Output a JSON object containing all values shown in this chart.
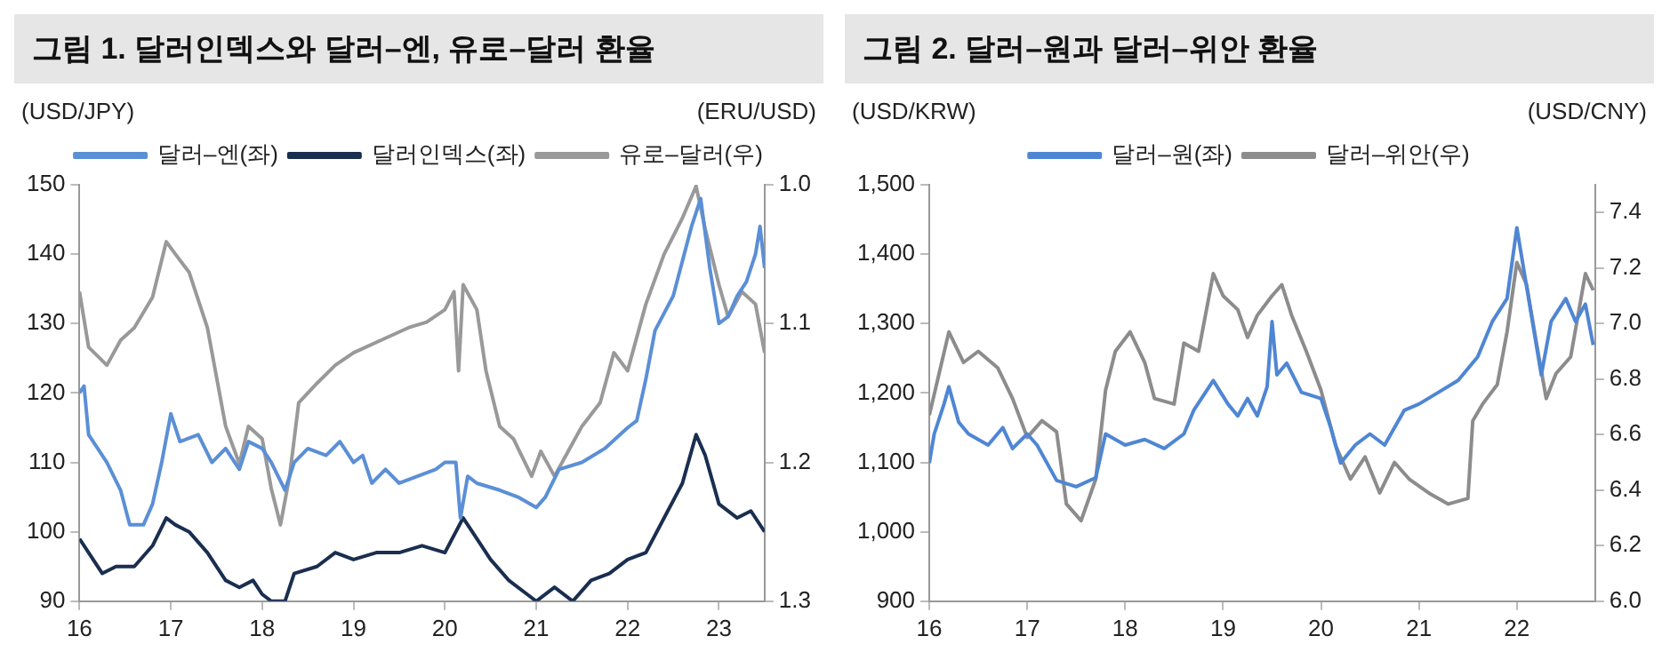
{
  "chart_data": [
    {
      "type": "line",
      "title": "그림 1.  달러인덱스와 달러–엔, 유로–달러 환율",
      "ylabel": "(USD/JPY)",
      "y2label": "(ERU/USD)",
      "xlim": [
        16,
        23.5
      ],
      "xticks": [
        16,
        17,
        18,
        19,
        20,
        21,
        22,
        23
      ],
      "ylim": [
        90,
        150
      ],
      "yticks": [
        90,
        100,
        110,
        120,
        130,
        140,
        150
      ],
      "y2lim": [
        1.3,
        1.0
      ],
      "y2ticks": [
        {
          "value": 1.0,
          "label": "1.0"
        },
        1.1,
        1.2,
        1.3
      ],
      "grid": false,
      "legend": "top",
      "marker": "none",
      "line_style": "solid",
      "series": [
        {
          "name": "달러–엔(좌)",
          "color": "#5b8fd6",
          "x": [
            16.0,
            16.05,
            16.1,
            16.3,
            16.45,
            16.55,
            16.7,
            16.8,
            16.9,
            17.0,
            17.1,
            17.3,
            17.45,
            17.6,
            17.75,
            17.85,
            18.0,
            18.1,
            18.25,
            18.35,
            18.5,
            18.7,
            18.85,
            19.0,
            19.1,
            19.2,
            19.35,
            19.5,
            19.7,
            19.9,
            20.0,
            20.12,
            20.17,
            20.25,
            20.35,
            20.6,
            20.8,
            21.0,
            21.1,
            21.25,
            21.5,
            21.75,
            22.0,
            22.1,
            22.2,
            22.3,
            22.5,
            22.7,
            22.8,
            22.9,
            23.0,
            23.1,
            23.2,
            23.3,
            23.4,
            23.45,
            23.5
          ],
          "values": [
            120,
            121,
            114,
            110,
            106,
            101,
            101,
            104,
            110,
            117,
            113,
            114,
            110,
            112,
            109,
            113,
            112,
            110,
            106,
            110,
            112,
            111,
            113,
            110,
            111,
            107,
            109,
            107,
            108,
            109,
            110,
            110,
            102,
            108,
            107,
            106,
            105,
            103.5,
            105,
            109,
            110,
            112,
            115,
            116,
            122,
            129,
            134,
            144,
            148,
            138,
            130,
            131,
            134,
            136,
            140,
            144,
            138
          ]
        },
        {
          "name": "달러인덱스(좌)",
          "color": "#1a2e50",
          "x": [
            16.0,
            16.1,
            16.25,
            16.4,
            16.6,
            16.8,
            16.95,
            17.05,
            17.2,
            17.4,
            17.6,
            17.75,
            17.9,
            18.0,
            18.1,
            18.25,
            18.35,
            18.6,
            18.8,
            19.0,
            19.25,
            19.5,
            19.75,
            20.0,
            20.2,
            20.3,
            20.5,
            20.7,
            20.9,
            21.0,
            21.2,
            21.4,
            21.6,
            21.8,
            22.0,
            22.2,
            22.4,
            22.6,
            22.75,
            22.85,
            23.0,
            23.2,
            23.35,
            23.5
          ],
          "values": [
            99,
            97,
            94,
            95,
            95,
            98,
            102,
            101,
            100,
            97,
            93,
            92,
            93,
            91,
            90,
            90,
            94,
            95,
            97,
            96,
            97,
            97,
            98,
            97,
            102,
            100,
            96,
            93,
            91,
            90,
            92,
            90,
            93,
            94,
            96,
            97,
            102,
            107,
            114,
            111,
            104,
            102,
            103,
            100
          ]
        },
        {
          "name": "유로–달러(우)",
          "color": "#999999",
          "axis": "y2",
          "x": [
            16.0,
            16.1,
            16.3,
            16.45,
            16.6,
            16.8,
            16.95,
            17.05,
            17.2,
            17.4,
            17.6,
            17.75,
            17.85,
            18.0,
            18.1,
            18.2,
            18.3,
            18.4,
            18.6,
            18.8,
            19.0,
            19.3,
            19.6,
            19.8,
            20.0,
            20.1,
            20.15,
            20.2,
            20.35,
            20.45,
            20.6,
            20.75,
            20.95,
            21.05,
            21.2,
            21.35,
            21.5,
            21.7,
            21.85,
            22.0,
            22.2,
            22.4,
            22.6,
            22.75,
            22.85,
            23.0,
            23.1,
            23.25,
            23.4,
            23.5
          ],
          "values": [
            1.077,
            1.117,
            1.13,
            1.112,
            1.103,
            1.081,
            1.041,
            1.05,
            1.063,
            1.103,
            1.174,
            1.201,
            1.174,
            1.183,
            1.219,
            1.245,
            1.21,
            1.157,
            1.143,
            1.13,
            1.121,
            1.112,
            1.103,
            1.099,
            1.09,
            1.077,
            1.134,
            1.072,
            1.09,
            1.134,
            1.174,
            1.183,
            1.21,
            1.192,
            1.21,
            1.192,
            1.174,
            1.157,
            1.121,
            1.134,
            1.086,
            1.05,
            1.024,
            1.001,
            1.032,
            1.072,
            1.095,
            1.077,
            1.086,
            1.121
          ]
        }
      ]
    },
    {
      "type": "line",
      "title": "그림 2.  달러–원과 달러–위안 환율",
      "ylabel": "(USD/KRW)",
      "y2label": "(USD/CNY)",
      "xlim": [
        16,
        22.8
      ],
      "xticks": [
        16,
        17,
        18,
        19,
        20,
        21,
        22
      ],
      "ylim": [
        900,
        1500
      ],
      "yticks": [
        900,
        {
          "value": 1000,
          "label": "1,000"
        },
        {
          "value": 1100,
          "label": "1,100"
        },
        {
          "value": 1200,
          "label": "1,200"
        },
        {
          "value": 1300,
          "label": "1,300"
        },
        {
          "value": 1400,
          "label": "1,400"
        },
        {
          "value": 1500,
          "label": "1,500"
        }
      ],
      "y2lim": [
        6.0,
        7.5
      ],
      "y2ticks": [
        {
          "value": 6.0,
          "label": "6.0"
        },
        6.2,
        6.4,
        6.6,
        6.8,
        {
          "value": 7.0,
          "label": "7.0"
        },
        7.2,
        7.4
      ],
      "grid": false,
      "legend": "top",
      "marker": "none",
      "line_style": "solid",
      "series": [
        {
          "name": "달러–원(좌)",
          "color": "#4f86d4",
          "x": [
            16.0,
            16.05,
            16.15,
            16.2,
            16.3,
            16.4,
            16.6,
            16.75,
            16.85,
            17.0,
            17.1,
            17.3,
            17.5,
            17.7,
            17.8,
            18.0,
            18.2,
            18.4,
            18.6,
            18.7,
            18.9,
            19.05,
            19.15,
            19.25,
            19.35,
            19.45,
            19.5,
            19.55,
            19.65,
            19.8,
            20.0,
            20.1,
            20.2,
            20.35,
            20.5,
            20.65,
            20.85,
            21.0,
            21.2,
            21.4,
            21.6,
            21.75,
            21.9,
            22.0,
            22.1,
            22.25,
            22.35,
            22.5,
            22.6,
            22.7,
            22.78
          ],
          "values": [
            1099,
            1141,
            1184,
            1209,
            1158,
            1141,
            1125,
            1150,
            1120,
            1141,
            1125,
            1074,
            1065,
            1078,
            1141,
            1125,
            1133,
            1120,
            1141,
            1175,
            1218,
            1184,
            1167,
            1192,
            1167,
            1209,
            1303,
            1226,
            1243,
            1201,
            1192,
            1150,
            1099,
            1125,
            1141,
            1125,
            1175,
            1184,
            1201,
            1218,
            1252,
            1303,
            1336,
            1438,
            1353,
            1226,
            1303,
            1336,
            1303,
            1328,
            1269
          ]
        },
        {
          "name": "달러–위안(우)",
          "color": "#8c8c8c",
          "axis": "y2",
          "x": [
            16.0,
            16.1,
            16.2,
            16.35,
            16.5,
            16.7,
            16.85,
            17.0,
            17.15,
            17.3,
            17.4,
            17.55,
            17.7,
            17.8,
            17.9,
            18.05,
            18.2,
            18.3,
            18.5,
            18.6,
            18.75,
            18.9,
            19.0,
            19.15,
            19.25,
            19.35,
            19.5,
            19.6,
            19.7,
            19.85,
            20.0,
            20.15,
            20.3,
            20.45,
            20.6,
            20.75,
            20.9,
            21.1,
            21.3,
            21.5,
            21.55,
            21.65,
            21.8,
            21.9,
            22.0,
            22.1,
            22.2,
            22.3,
            22.4,
            22.55,
            22.7,
            22.78
          ],
          "values": [
            6.67,
            6.82,
            6.97,
            6.86,
            6.9,
            6.84,
            6.73,
            6.59,
            6.65,
            6.61,
            6.35,
            6.29,
            6.44,
            6.76,
            6.9,
            6.97,
            6.86,
            6.73,
            6.71,
            6.93,
            6.9,
            7.18,
            7.1,
            7.05,
            6.95,
            7.03,
            7.1,
            7.14,
            7.03,
            6.9,
            6.76,
            6.56,
            6.44,
            6.52,
            6.39,
            6.5,
            6.44,
            6.39,
            6.35,
            6.37,
            6.65,
            6.71,
            6.78,
            6.97,
            7.22,
            7.14,
            6.93,
            6.73,
            6.82,
            6.88,
            7.18,
            7.12
          ]
        }
      ]
    }
  ]
}
